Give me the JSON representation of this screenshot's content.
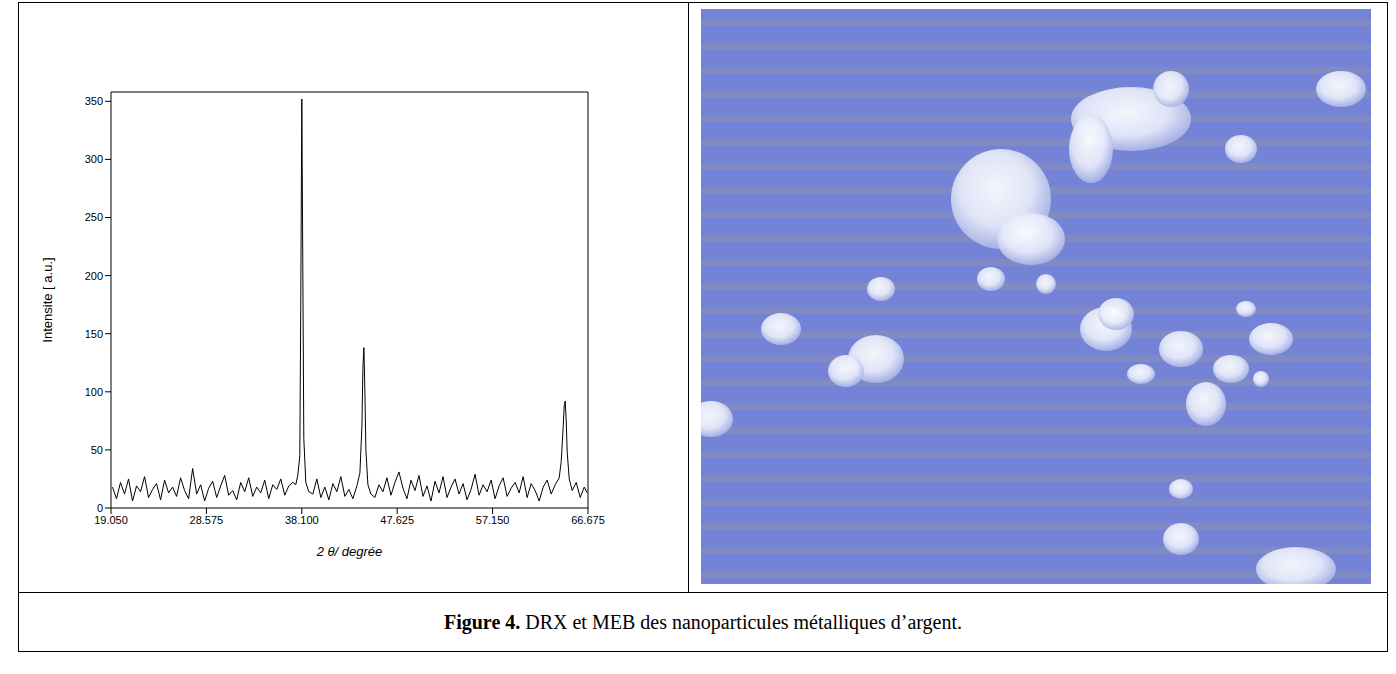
{
  "chart_data": {
    "type": "line",
    "x_label": "2 θ/ degrée",
    "y_label": "Intensite [ a.u.]",
    "xlim": [
      19.05,
      66.675
    ],
    "xticks": [
      {
        "value": 19.05,
        "label": "19.050"
      },
      28.575,
      {
        "value": 38.1,
        "label": "38.100"
      },
      47.625,
      {
        "value": 57.15,
        "label": "57.150"
      },
      66.675
    ],
    "ylim": [
      0,
      358
    ],
    "yticks": [
      0,
      50,
      100,
      150,
      200,
      250,
      300,
      350
    ],
    "grid": false,
    "color": "#000000",
    "x": [
      19.2,
      19.6,
      20.0,
      20.4,
      20.8,
      21.2,
      21.6,
      22.0,
      22.4,
      22.8,
      23.2,
      23.6,
      24.0,
      24.4,
      24.8,
      25.2,
      25.6,
      26.0,
      26.4,
      26.8,
      27.2,
      27.6,
      28.0,
      28.4,
      28.8,
      29.2,
      29.6,
      30.0,
      30.4,
      30.8,
      31.2,
      31.6,
      32.0,
      32.4,
      32.8,
      33.2,
      33.6,
      34.0,
      34.4,
      34.8,
      35.2,
      35.6,
      36.0,
      36.4,
      36.8,
      37.2,
      37.5,
      37.7,
      37.9,
      38.0,
      38.1,
      38.2,
      38.3,
      38.5,
      38.8,
      39.2,
      39.6,
      40.0,
      40.4,
      40.8,
      41.2,
      41.6,
      42.0,
      42.4,
      42.8,
      43.2,
      43.6,
      43.9,
      44.1,
      44.2,
      44.3,
      44.4,
      44.5,
      44.7,
      45.0,
      45.4,
      45.8,
      46.2,
      46.6,
      47.0,
      47.4,
      47.8,
      48.2,
      48.6,
      49.0,
      49.4,
      49.8,
      50.2,
      50.6,
      51.0,
      51.4,
      51.8,
      52.2,
      52.6,
      53.0,
      53.4,
      53.8,
      54.2,
      54.6,
      55.0,
      55.4,
      55.8,
      56.2,
      56.6,
      57.0,
      57.4,
      57.8,
      58.2,
      58.6,
      59.0,
      59.4,
      59.8,
      60.2,
      60.6,
      61.0,
      61.4,
      61.8,
      62.2,
      62.6,
      63.0,
      63.4,
      63.8,
      64.0,
      64.2,
      64.3,
      64.4,
      64.5,
      64.6,
      64.8,
      65.1,
      65.5,
      65.9,
      66.3,
      66.6
    ],
    "values": [
      18,
      8,
      22,
      12,
      25,
      6,
      19,
      14,
      27,
      9,
      16,
      21,
      7,
      24,
      13,
      18,
      10,
      26,
      15,
      8,
      34,
      12,
      20,
      6,
      17,
      23,
      9,
      19,
      28,
      11,
      15,
      7,
      22,
      14,
      26,
      10,
      18,
      13,
      24,
      8,
      20,
      16,
      25,
      11,
      19,
      22,
      20,
      28,
      45,
      180,
      352,
      210,
      60,
      22,
      14,
      12,
      25,
      9,
      18,
      7,
      21,
      14,
      27,
      10,
      16,
      8,
      19,
      30,
      70,
      120,
      138,
      100,
      50,
      20,
      12,
      9,
      20,
      14,
      26,
      11,
      22,
      31,
      17,
      8,
      24,
      15,
      28,
      10,
      19,
      6,
      23,
      13,
      27,
      9,
      18,
      25,
      12,
      21,
      7,
      16,
      29,
      11,
      20,
      14,
      24,
      8,
      19,
      26,
      10,
      17,
      22,
      13,
      27,
      9,
      21,
      15,
      6,
      18,
      24,
      12,
      20,
      26,
      40,
      70,
      88,
      92,
      75,
      48,
      25,
      15,
      22,
      9,
      18,
      13
    ]
  },
  "caption_label": "Figure 4.",
  "caption": "DRX et MEB des nanoparticules métalliques d’argent."
}
